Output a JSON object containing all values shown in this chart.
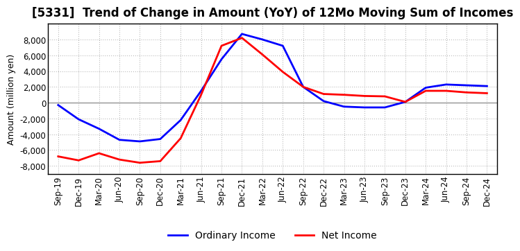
{
  "title": "[5331]  Trend of Change in Amount (YoY) of 12Mo Moving Sum of Incomes",
  "ylabel": "Amount (million yen)",
  "labels": [
    "Sep-19",
    "Dec-19",
    "Mar-20",
    "Jun-20",
    "Sep-20",
    "Dec-20",
    "Mar-21",
    "Jun-21",
    "Sep-21",
    "Dec-21",
    "Mar-22",
    "Jun-22",
    "Sep-22",
    "Dec-22",
    "Mar-23",
    "Jun-23",
    "Sep-23",
    "Dec-23",
    "Mar-24",
    "Jun-24",
    "Sep-24",
    "Dec-24"
  ],
  "ordinary_income": [
    -300,
    -2100,
    -3300,
    -4700,
    -4900,
    -4600,
    -2200,
    1500,
    5500,
    8700,
    8000,
    7200,
    2000,
    200,
    -500,
    -600,
    -600,
    100,
    1900,
    2300,
    2200,
    2100
  ],
  "net_income": [
    -6800,
    -7300,
    -6400,
    -7200,
    -7600,
    -7400,
    -4500,
    1000,
    7200,
    8200,
    6100,
    3900,
    2000,
    1100,
    1000,
    850,
    800,
    100,
    1500,
    1500,
    1300,
    1200
  ],
  "ordinary_income_color": "#0000FF",
  "net_income_color": "#FF0000",
  "background_color": "#FFFFFF",
  "grid_color": "#AAAAAA",
  "ylim": [
    -9000,
    10000
  ],
  "yticks": [
    -8000,
    -6000,
    -4000,
    -2000,
    0,
    2000,
    4000,
    6000,
    8000
  ],
  "line_width": 2.0,
  "title_fontsize": 12,
  "legend_fontsize": 10,
  "tick_fontsize": 8.5,
  "ylabel_fontsize": 9
}
